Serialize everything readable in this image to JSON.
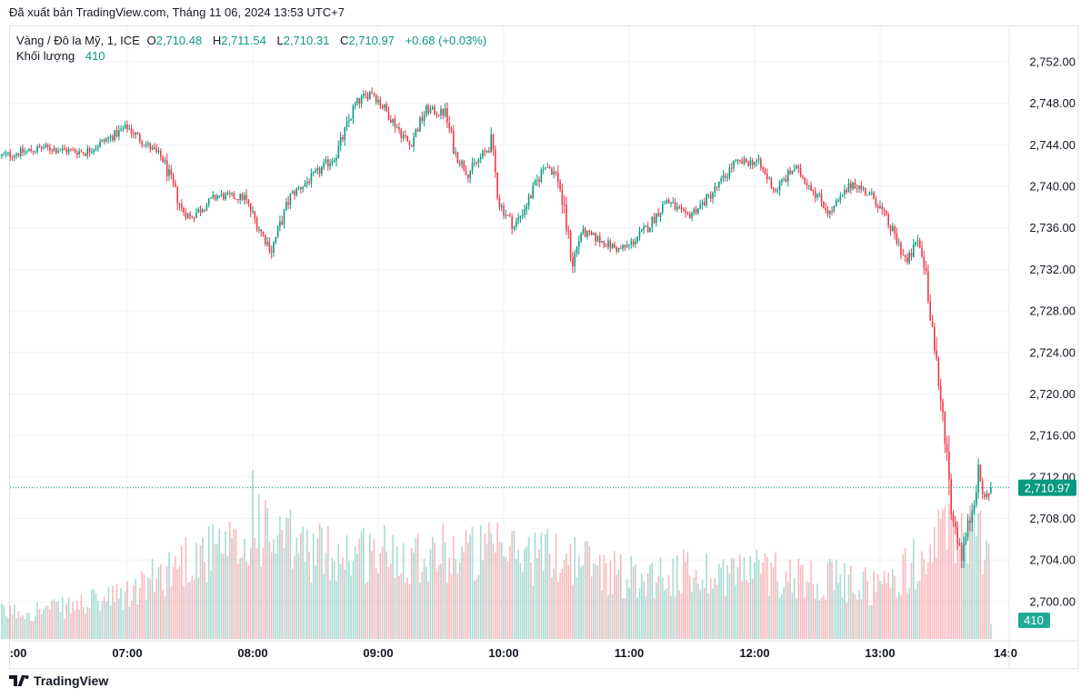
{
  "header": {
    "published": "Đã xuất bản TradingView.com, Tháng 11 06, 2024 13:53 UTC+7"
  },
  "legend": {
    "symbol": "Vàng / Đô la Mỹ, 1, ICE",
    "open_label": "O",
    "open": "2,710.48",
    "high_label": "H",
    "high": "2,711.54",
    "low_label": "L",
    "low": "2,710.31",
    "close_label": "C",
    "close": "2,710.97",
    "change": "+0.68 (+0.03%)",
    "volume_label": "Khối lượng",
    "volume": "410"
  },
  "footer": {
    "brand": "TradingView"
  },
  "colors": {
    "up": "#089981",
    "down": "#f23645",
    "grid": "#f0f3fa"
  },
  "chart_data": {
    "type": "candlestick",
    "interval_minutes": 1,
    "start_time": "06:00",
    "end_time": "13:53",
    "ylim": [
      2698,
      2754
    ],
    "y_ticks": [
      "2,752.00",
      "2,748.00",
      "2,744.00",
      "2,740.00",
      "2,736.00",
      "2,732.00",
      "2,728.00",
      "2,724.00",
      "2,720.00",
      "2,716.00",
      "2,712.00",
      "2,708.00",
      "2,704.00",
      "2,700.00"
    ],
    "y_tick_values": [
      2752,
      2748,
      2744,
      2740,
      2736,
      2732,
      2728,
      2724,
      2720,
      2716,
      2712,
      2708,
      2704,
      2700
    ],
    "x_ticks": [
      ":00",
      "07:00",
      "08:00",
      "09:00",
      "10:00",
      "11:00",
      "12:00",
      "13:00",
      "14:0"
    ],
    "x_tick_minutes": [
      0,
      60,
      120,
      180,
      240,
      300,
      360,
      420,
      480
    ],
    "last_price": 2710.97,
    "last_price_label": "2,710.97",
    "last_volume": 410,
    "last_volume_label": "410",
    "last_bar": {
      "open": 2710.48,
      "high": 2711.54,
      "low": 2710.31,
      "close": 2710.97
    },
    "price_path_minute_close": [
      [
        0,
        2742.9
      ],
      [
        20,
        2743.7
      ],
      [
        40,
        2743.3
      ],
      [
        60,
        2745.7
      ],
      [
        77,
        2742.6
      ],
      [
        86,
        2737.8
      ],
      [
        90,
        2737
      ],
      [
        103,
        2739.1
      ],
      [
        116,
        2738.9
      ],
      [
        125,
        2735.2
      ],
      [
        129,
        2733.9
      ],
      [
        138,
        2739.1
      ],
      [
        151,
        2741.3
      ],
      [
        160,
        2743.1
      ],
      [
        169,
        2747.9
      ],
      [
        177,
        2749.2
      ],
      [
        186,
        2746.6
      ],
      [
        195,
        2744
      ],
      [
        203,
        2747.4
      ],
      [
        212,
        2747
      ],
      [
        217,
        2743.1
      ],
      [
        223,
        2741.3
      ],
      [
        234,
        2744
      ],
      [
        238,
        2738.3
      ],
      [
        245,
        2736.1
      ],
      [
        251,
        2738.3
      ],
      [
        260,
        2742.2
      ],
      [
        266,
        2740.9
      ],
      [
        273,
        2732.6
      ],
      [
        277,
        2735.6
      ],
      [
        286,
        2734.8
      ],
      [
        295,
        2733.9
      ],
      [
        300,
        2734.3
      ],
      [
        309,
        2736.1
      ],
      [
        318,
        2738.7
      ],
      [
        327,
        2737
      ],
      [
        335,
        2738.3
      ],
      [
        344,
        2740.4
      ],
      [
        350,
        2742.2
      ],
      [
        361,
        2742.4
      ],
      [
        370,
        2739.6
      ],
      [
        379,
        2741.8
      ],
      [
        387,
        2740
      ],
      [
        396,
        2737.4
      ],
      [
        407,
        2740.4
      ],
      [
        418,
        2738.7
      ],
      [
        427,
        2735.2
      ],
      [
        433,
        2732.6
      ],
      [
        438,
        2734.8
      ],
      [
        442,
        2731.7
      ],
      [
        444,
        2728.2
      ],
      [
        448,
        2720.3
      ],
      [
        451,
        2716.8
      ],
      [
        454,
        2708.9
      ],
      [
        459,
        2704.5
      ],
      [
        463,
        2708
      ],
      [
        467,
        2712.4
      ],
      [
        470,
        2709.8
      ],
      [
        473,
        2710.97
      ]
    ],
    "volume_path": [
      [
        0,
        750
      ],
      [
        30,
        900
      ],
      [
        60,
        1250
      ],
      [
        90,
        2400
      ],
      [
        119,
        2600
      ],
      [
        120,
        4150
      ],
      [
        125,
        3000
      ],
      [
        150,
        2500
      ],
      [
        200,
        2500
      ],
      [
        240,
        2500
      ],
      [
        270,
        2400
      ],
      [
        300,
        1800
      ],
      [
        360,
        2000
      ],
      [
        420,
        1500
      ],
      [
        440,
        2300
      ],
      [
        455,
        3300
      ],
      [
        465,
        3000
      ],
      [
        472,
        2800
      ],
      [
        473,
        410
      ]
    ]
  }
}
